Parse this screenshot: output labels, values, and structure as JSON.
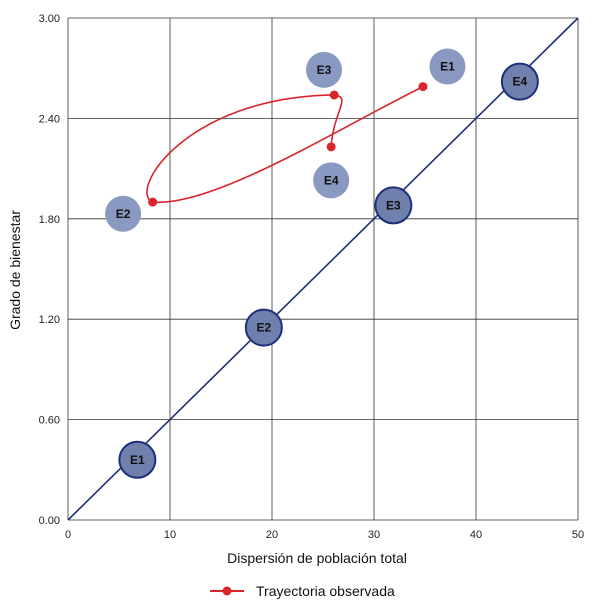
{
  "chart_data": {
    "type": "scatter",
    "title": "",
    "xlabel": "Dispersión de población total",
    "ylabel": "Grado de bienestar",
    "xlim": [
      0,
      50
    ],
    "ylim": [
      0,
      3.0
    ],
    "x_ticks": [
      0,
      10,
      20,
      30,
      40,
      50
    ],
    "y_ticks": [
      0,
      0.6,
      1.2,
      1.8,
      2.4,
      3.0
    ],
    "x_tick_labels": [
      "0",
      "10",
      "20",
      "30",
      "40",
      "50"
    ],
    "y_tick_labels": [
      "0.00",
      "0.60",
      "1.20",
      "1.80",
      "2.40",
      "3.00"
    ],
    "grid": true,
    "legend_position": "bottom-center",
    "reference_line": {
      "x": [
        0,
        50
      ],
      "y": [
        0,
        3.0
      ],
      "color": "#1f2f7a"
    },
    "diagonal_nodes": [
      {
        "label": "E1",
        "x": 6.8,
        "y": 0.36
      },
      {
        "label": "E2",
        "x": 19.2,
        "y": 1.15
      },
      {
        "label": "E3",
        "x": 31.9,
        "y": 1.88
      },
      {
        "label": "E4",
        "x": 44.3,
        "y": 2.62
      }
    ],
    "off_diagonal_nodes": [
      {
        "label": "E1",
        "x": 37.2,
        "y": 2.71
      },
      {
        "label": "E2",
        "x": 5.4,
        "y": 1.83
      },
      {
        "label": "E3",
        "x": 25.1,
        "y": 2.69
      },
      {
        "label": "E4",
        "x": 25.8,
        "y": 2.03
      }
    ],
    "series": [
      {
        "name": "Trayectoria observada",
        "color": "#d9262c",
        "points": [
          {
            "x": 34.8,
            "y": 2.59
          },
          {
            "x": 8.3,
            "y": 1.9
          },
          {
            "x": 26.1,
            "y": 2.54
          },
          {
            "x": 25.8,
            "y": 2.23
          }
        ]
      }
    ],
    "colors": {
      "node_outlined_fill": "#6f80ad",
      "node_outline": "#1f2f7a",
      "node_plain_fill": "#8a99c2",
      "grid": "#333333"
    }
  }
}
